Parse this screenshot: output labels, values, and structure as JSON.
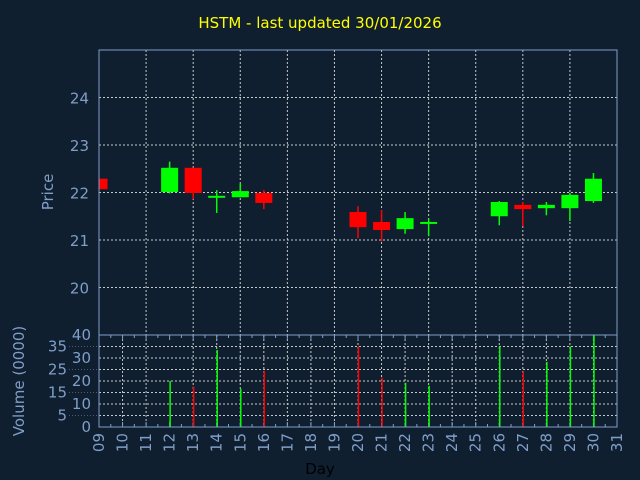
{
  "chart_data": [
    {
      "type": "candlestick",
      "title": "HSTM - last updated 30/01/2026",
      "xlabel": "Day",
      "ylabel": "Price",
      "ylim": [
        19,
        25
      ],
      "yticks": [
        20,
        21,
        22,
        23,
        24
      ],
      "grid": true,
      "colors": {
        "up": "#00ff00",
        "down": "#ff0000",
        "background": "#0f1f30",
        "axis": "#7f9fc8",
        "title": "#ffff00"
      },
      "candles": [
        {
          "day": 9,
          "open": 22.29,
          "high": 22.29,
          "low": 22.07,
          "close": 22.07
        },
        {
          "day": 12,
          "open": 22.01,
          "high": 22.65,
          "low": 21.98,
          "close": 22.52
        },
        {
          "day": 13,
          "open": 22.52,
          "high": 22.52,
          "low": 21.86,
          "close": 21.99
        },
        {
          "day": 14,
          "open": 21.89,
          "high": 22.05,
          "low": 21.57,
          "close": 21.93
        },
        {
          "day": 15,
          "open": 21.9,
          "high": 22.19,
          "low": 21.9,
          "close": 22.03
        },
        {
          "day": 16,
          "open": 21.99,
          "high": 22.05,
          "low": 21.65,
          "close": 21.78
        },
        {
          "day": 20,
          "open": 21.59,
          "high": 21.71,
          "low": 21.04,
          "close": 21.27
        },
        {
          "day": 21,
          "open": 21.38,
          "high": 21.63,
          "low": 20.97,
          "close": 21.21
        },
        {
          "day": 22,
          "open": 21.23,
          "high": 21.59,
          "low": 21.13,
          "close": 21.46
        },
        {
          "day": 23,
          "open": 21.34,
          "high": 21.45,
          "low": 21.08,
          "close": 21.38
        },
        {
          "day": 26,
          "open": 21.5,
          "high": 21.82,
          "low": 21.31,
          "close": 21.8
        },
        {
          "day": 27,
          "open": 21.74,
          "high": 21.8,
          "low": 21.29,
          "close": 21.65
        },
        {
          "day": 28,
          "open": 21.67,
          "high": 21.8,
          "low": 21.52,
          "close": 21.74
        },
        {
          "day": 29,
          "open": 21.67,
          "high": 21.99,
          "low": 21.4,
          "close": 21.95
        },
        {
          "day": 30,
          "open": 21.82,
          "high": 22.41,
          "low": 21.78,
          "close": 22.29
        }
      ]
    },
    {
      "type": "bar",
      "xlabel": "Day",
      "ylabel": "Volume (0000)",
      "ylim": [
        0,
        40
      ],
      "yticks": [
        0,
        5,
        10,
        15,
        20,
        25,
        30,
        35,
        40
      ],
      "xticks": [
        "09",
        "10",
        "11",
        "12",
        "13",
        "14",
        "15",
        "16",
        "17",
        "18",
        "19",
        "20",
        "21",
        "22",
        "23",
        "24",
        "25",
        "26",
        "27",
        "28",
        "29",
        "30",
        "31"
      ],
      "grid": true,
      "bars": [
        {
          "day": 12,
          "value": 20,
          "dir": "up"
        },
        {
          "day": 13,
          "value": 17.6,
          "dir": "down"
        },
        {
          "day": 14,
          "value": 33.5,
          "dir": "up"
        },
        {
          "day": 15,
          "value": 16.6,
          "dir": "up"
        },
        {
          "day": 16,
          "value": 24.4,
          "dir": "down"
        },
        {
          "day": 20,
          "value": 35,
          "dir": "down"
        },
        {
          "day": 21,
          "value": 21.5,
          "dir": "down"
        },
        {
          "day": 22,
          "value": 19.2,
          "dir": "up"
        },
        {
          "day": 23,
          "value": 17.9,
          "dir": "up"
        },
        {
          "day": 26,
          "value": 35,
          "dir": "up"
        },
        {
          "day": 27,
          "value": 24.1,
          "dir": "down"
        },
        {
          "day": 28,
          "value": 28.3,
          "dir": "up"
        },
        {
          "day": 29,
          "value": 35,
          "dir": "up"
        },
        {
          "day": 30,
          "value": 40,
          "dir": "up"
        }
      ]
    }
  ]
}
